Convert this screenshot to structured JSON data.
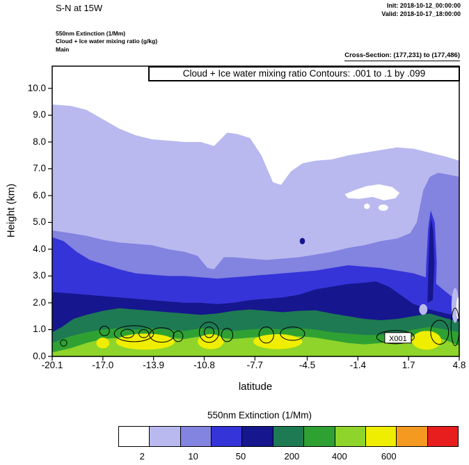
{
  "header": {
    "title": "S-N at 15W",
    "init": "Init: 2018-10-12_00:00:00",
    "valid": "Valid: 2018-10-17_18:00:00",
    "legend_lines": [
      "550nm Extinction  (1/Mm)",
      "Cloud + Ice water mixing ratio  (g/kg)",
      "Main"
    ],
    "cross_section": "Cross-Section: (177,231) to (177,486)"
  },
  "plot": {
    "inner_title": "Cloud + Ice water mixing ratio Contours: .001 to .1 by .099"
  },
  "palette": {
    "white": "#ffffff",
    "lavender": "#b9b9f0",
    "purple": "#8383e0",
    "blue": "#3434d8",
    "navy": "#16168e",
    "teal": "#1e7a52",
    "green": "#2fa133",
    "lightgreen": "#8fd42a",
    "yellow": "#f0ee00",
    "orange": "#f59a20",
    "red": "#e81e1e"
  },
  "chart_data": {
    "type": "filled_contour_cross_section",
    "title": "S-N at 15W",
    "subtitle": "Cloud + Ice water mixing ratio Contours: .001 to .1 by .099",
    "xlabel": "latitude",
    "ylabel": "Height (km)",
    "xlim": [
      -20.1,
      4.8
    ],
    "ylim": [
      0,
      10.83
    ],
    "x_ticks": [
      -20.1,
      -17.0,
      -13.9,
      -10.8,
      -7.7,
      -4.5,
      -1.4,
      1.7,
      4.8
    ],
    "y_ticks": [
      0,
      1,
      2,
      3,
      4,
      5,
      6,
      7,
      8,
      9,
      10
    ],
    "colorbar": {
      "title": "550nm Extinction  (1/Mm)",
      "colors": [
        "white",
        "lavender",
        "purple",
        "blue",
        "navy",
        "teal",
        "green",
        "lightgreen",
        "yellow",
        "orange",
        "red"
      ],
      "tick_labels": [
        "2",
        "10",
        "50",
        "200",
        "400",
        "600"
      ],
      "tick_positions_pct": [
        7,
        22,
        36,
        51,
        65,
        79.5
      ]
    },
    "levels": [
      {
        "color": "lavender",
        "colorbar_cell": 2,
        "x": [
          -20.1,
          -19,
          -18,
          -17,
          -16,
          -15,
          -14,
          -13,
          -12,
          -11,
          -10.2,
          -9.4,
          -8.8,
          -8,
          -7.3,
          -6.6,
          -6.1,
          -5.5,
          -4.8,
          -4,
          -3,
          -2,
          -1,
          0,
          1,
          2,
          3,
          4,
          4.8
        ],
        "top": [
          9.4,
          9.35,
          9.2,
          8.85,
          8.5,
          8.25,
          8.1,
          8.05,
          8.0,
          8.0,
          7.85,
          8.35,
          8.3,
          8.15,
          7.5,
          6.5,
          6.4,
          6.9,
          7.2,
          7.3,
          7.35,
          7.5,
          7.6,
          7.7,
          7.8,
          7.75,
          7.6,
          7.45,
          7.3
        ]
      },
      {
        "color": "purple",
        "colorbar_cell": 3,
        "x": [
          -20.1,
          -19,
          -18,
          -17,
          -16,
          -15,
          -14,
          -13,
          -12,
          -11.2,
          -10.6,
          -10.2,
          -9.6,
          -9,
          -8,
          -7,
          -6,
          -5,
          -4,
          -3,
          -2,
          -1,
          0,
          1,
          1.8,
          2.2,
          2.6,
          3,
          3.5,
          4,
          4.8
        ],
        "top": [
          4.7,
          4.6,
          4.5,
          4.35,
          4.25,
          4.2,
          4.15,
          4.0,
          3.9,
          3.75,
          3.3,
          3.25,
          3.7,
          3.7,
          3.65,
          3.6,
          3.65,
          3.7,
          3.8,
          3.9,
          4.05,
          4.15,
          4.3,
          4.4,
          4.6,
          5.0,
          6.2,
          6.7,
          6.85,
          6.8,
          6.7
        ]
      },
      {
        "color": "blue",
        "colorbar_cell": 4,
        "x": [
          -20.1,
          -19.4,
          -18.6,
          -17.8,
          -17,
          -16,
          -15,
          -14,
          -13,
          -12,
          -11,
          -10,
          -9,
          -8,
          -7,
          -6,
          -5,
          -4,
          -3,
          -2,
          -1,
          0,
          1,
          2,
          3,
          3.8,
          4.4,
          4.8
        ],
        "top": [
          4.45,
          4.3,
          3.9,
          3.6,
          3.45,
          3.25,
          3.1,
          3.05,
          3.0,
          3.0,
          2.95,
          2.9,
          2.95,
          3.0,
          3.05,
          3.1,
          3.15,
          3.2,
          3.3,
          3.4,
          3.35,
          3.3,
          3.2,
          3.1,
          2.9,
          2.5,
          2.2,
          2.05
        ]
      },
      {
        "color": "navy",
        "colorbar_cell": 5,
        "x": [
          -20.1,
          -19,
          -18,
          -17,
          -16,
          -15,
          -14,
          -13,
          -12,
          -11,
          -10,
          -9,
          -8,
          -7,
          -6,
          -5,
          -4,
          -3,
          -2,
          -1,
          -0.3,
          0.5,
          1.2,
          2,
          3,
          4,
          4.8
        ],
        "top": [
          2.4,
          2.35,
          2.3,
          2.25,
          2.2,
          2.15,
          2.1,
          2.05,
          2.0,
          2.0,
          1.95,
          2.0,
          2.1,
          2.15,
          2.2,
          2.3,
          2.5,
          2.6,
          2.7,
          2.75,
          2.8,
          2.6,
          2.3,
          1.95,
          1.75,
          1.6,
          1.5
        ]
      },
      {
        "color": "teal",
        "colorbar_cell": 6,
        "x": [
          -20.1,
          -19.5,
          -18.8,
          -18,
          -17,
          -16,
          -15,
          -14,
          -13,
          -12,
          -11,
          -10,
          -9,
          -8,
          -7,
          -6,
          -5,
          -4,
          -3,
          -2,
          -1,
          0,
          1,
          2,
          3,
          4,
          4.8
        ],
        "top": [
          0.9,
          1.1,
          1.4,
          1.55,
          1.7,
          1.8,
          1.75,
          1.7,
          1.65,
          1.6,
          1.55,
          1.6,
          1.7,
          1.75,
          1.7,
          1.65,
          1.7,
          1.72,
          1.6,
          1.5,
          1.4,
          1.35,
          1.4,
          1.5,
          1.6,
          1.42,
          1.3
        ]
      },
      {
        "color": "green",
        "colorbar_cell": 7,
        "x": [
          -20.1,
          -19,
          -18,
          -17,
          -16,
          -15,
          -14,
          -13,
          -12,
          -11,
          -10,
          -9,
          -8,
          -7,
          -6,
          -5,
          -4,
          -3,
          -2,
          -1,
          0,
          1,
          2,
          3,
          4,
          4.8
        ],
        "top": [
          0.5,
          0.75,
          0.9,
          1.0,
          1.05,
          1.0,
          1.05,
          1.0,
          0.95,
          1.05,
          1.0,
          0.95,
          1.0,
          1.05,
          1.0,
          1.05,
          1.0,
          0.9,
          0.85,
          0.8,
          0.8,
          0.85,
          1.0,
          1.1,
          1.0,
          0.9
        ]
      },
      {
        "color": "lightgreen",
        "colorbar_cell": 8,
        "x": [
          -20.1,
          -19,
          -18,
          -17,
          -16,
          -15,
          -14,
          -13,
          -12,
          -11,
          -10,
          -9,
          -8,
          -7,
          -6,
          -5,
          -4,
          -3,
          -2,
          -1,
          0,
          1,
          2,
          3,
          4,
          4.8
        ],
        "top": [
          0.15,
          0.3,
          0.5,
          0.65,
          0.7,
          0.75,
          0.75,
          0.7,
          0.65,
          0.75,
          0.7,
          0.65,
          0.7,
          0.75,
          0.7,
          0.75,
          0.7,
          0.6,
          0.5,
          0.45,
          0.5,
          0.6,
          0.75,
          0.8,
          0.6,
          0.4
        ]
      }
    ],
    "white_patches": {
      "polygons": [
        [
          [
            -2.2,
            6.05
          ],
          [
            -1.6,
            6.2
          ],
          [
            -0.9,
            6.35
          ],
          [
            -0.1,
            6.42
          ],
          [
            0.7,
            6.32
          ],
          [
            1.15,
            6.1
          ],
          [
            0.9,
            5.9
          ],
          [
            0.2,
            5.82
          ],
          [
            -0.5,
            5.95
          ],
          [
            -1.3,
            5.88
          ],
          [
            -2.0,
            5.9
          ]
        ]
      ],
      "ellipses": [
        {
          "cx": 0.15,
          "cy": 5.55,
          "rx": 0.3,
          "ry": 0.12
        },
        {
          "cx": -0.85,
          "cy": 5.6,
          "rx": 0.18,
          "ry": 0.1
        }
      ]
    },
    "overlay_polygons": [
      {
        "color": "blue",
        "points": [
          [
            2.7,
            1.9
          ],
          [
            2.78,
            3.4
          ],
          [
            2.9,
            4.8
          ],
          [
            3.05,
            5.45
          ],
          [
            3.3,
            5.0
          ],
          [
            3.42,
            3.5
          ],
          [
            3.35,
            2.0
          ]
        ]
      },
      {
        "color": "navy",
        "points": [
          [
            2.85,
            2.0
          ],
          [
            2.92,
            3.4
          ],
          [
            3.0,
            4.7
          ],
          [
            3.08,
            5.15
          ],
          [
            3.2,
            4.7
          ],
          [
            3.28,
            3.5
          ],
          [
            3.18,
            2.1
          ]
        ]
      }
    ],
    "overlay_ellipses": [
      {
        "color": "lavender",
        "cx": 2.6,
        "cy": 1.75,
        "rx": 0.25,
        "ry": 0.2
      },
      {
        "color": "lavender",
        "cx": 4.55,
        "cy": 1.9,
        "rx": 0.22,
        "ry": 0.65
      },
      {
        "color": "white",
        "cx": 4.72,
        "cy": 1.8,
        "rx": 0.1,
        "ry": 0.4
      },
      {
        "color": "navy",
        "cx": -4.8,
        "cy": 4.3,
        "rx": 0.16,
        "ry": 0.12
      },
      {
        "color": "yellow",
        "cx": -14.4,
        "cy": 0.55,
        "rx": 1.8,
        "ry": 0.3
      },
      {
        "color": "yellow",
        "cx": -10.4,
        "cy": 0.55,
        "rx": 0.8,
        "ry": 0.28
      },
      {
        "color": "yellow",
        "cx": -6.3,
        "cy": 0.55,
        "rx": 1.5,
        "ry": 0.28
      },
      {
        "color": "yellow",
        "cx": 2.8,
        "cy": 0.6,
        "rx": 0.9,
        "ry": 0.35
      },
      {
        "color": "yellow",
        "cx": -17.0,
        "cy": 0.5,
        "rx": 0.4,
        "ry": 0.2
      }
    ],
    "contour_lines": [
      {
        "cx": -19.4,
        "cy": 0.5,
        "rx": 0.2,
        "ry": 0.12
      },
      {
        "cx": -16.9,
        "cy": 0.95,
        "rx": 0.3,
        "ry": 0.18
      },
      {
        "cx": -15.1,
        "cy": 0.85,
        "rx": 1.2,
        "ry": 0.3
      },
      {
        "cx": -15.5,
        "cy": 0.85,
        "rx": 0.4,
        "ry": 0.16
      },
      {
        "cx": -14.5,
        "cy": 0.85,
        "rx": 0.3,
        "ry": 0.15
      },
      {
        "cx": -13.4,
        "cy": 0.8,
        "rx": 0.75,
        "ry": 0.27
      },
      {
        "cx": -12.4,
        "cy": 0.75,
        "rx": 0.3,
        "ry": 0.2
      },
      {
        "cx": -10.5,
        "cy": 0.9,
        "rx": 0.6,
        "ry": 0.38
      },
      {
        "cx": -10.5,
        "cy": 0.9,
        "rx": 0.3,
        "ry": 0.2
      },
      {
        "cx": -9.4,
        "cy": 0.8,
        "rx": 0.35,
        "ry": 0.25
      },
      {
        "cx": -7.0,
        "cy": 0.8,
        "rx": 0.45,
        "ry": 0.3
      },
      {
        "cx": -5.4,
        "cy": 0.85,
        "rx": 0.75,
        "ry": 0.25
      },
      {
        "cx": 0.9,
        "cy": 0.72,
        "rx": 1.15,
        "ry": 0.25
      },
      {
        "cx": 3.6,
        "cy": 0.9,
        "rx": 0.55,
        "ry": 0.45
      },
      {
        "cx": 4.55,
        "cy": 1.1,
        "rx": 0.25,
        "ry": 0.7
      }
    ],
    "contour_label": {
      "text": "X001",
      "lat": 1.05,
      "km": 0.68
    }
  }
}
